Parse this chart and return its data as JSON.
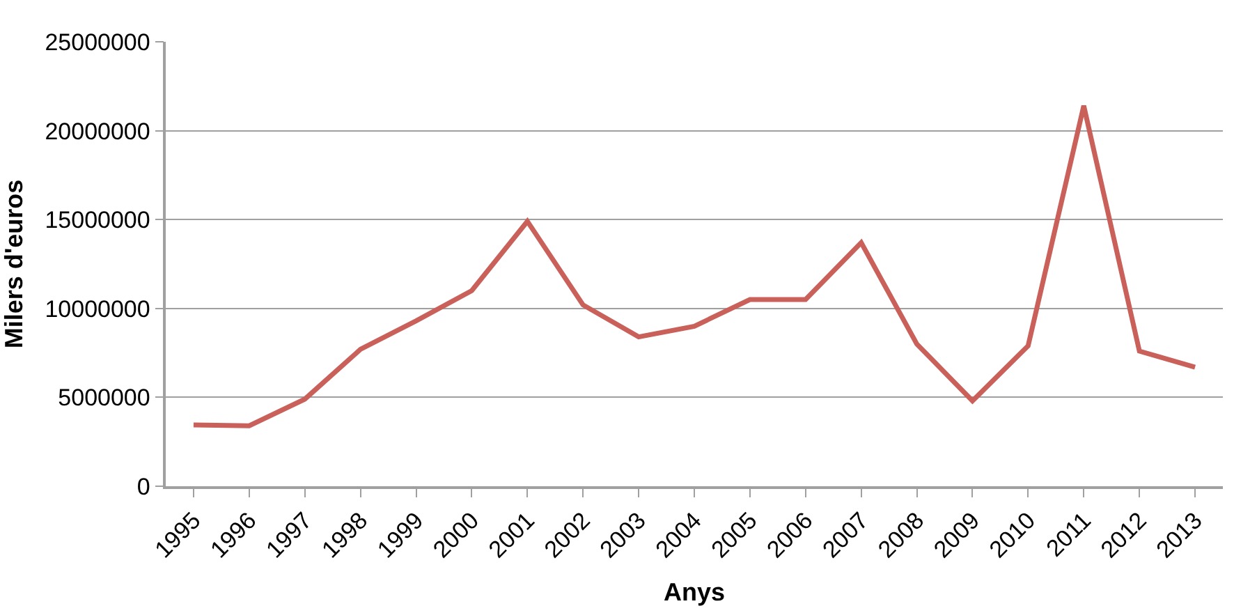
{
  "chart_data": {
    "type": "line",
    "xlabel": "Anys",
    "ylabel": "Milers d'euros",
    "categories": [
      "1995",
      "1996",
      "1997",
      "1998",
      "1999",
      "2000",
      "2001",
      "2002",
      "2003",
      "2004",
      "2005",
      "2006",
      "2007",
      "2008",
      "2009",
      "2010",
      "2011",
      "2012",
      "2013"
    ],
    "series": [
      {
        "color": "#c9605a",
        "values": [
          3450000,
          3400000,
          4900000,
          7700000,
          9300000,
          11000000,
          14900000,
          10200000,
          8400000,
          9000000,
          10500000,
          10500000,
          13700000,
          8000000,
          4800000,
          7900000,
          21400000,
          7600000,
          6700000
        ]
      }
    ],
    "ylim": [
      0,
      25000000
    ],
    "yticks": [
      0,
      5000000,
      10000000,
      15000000,
      20000000,
      25000000
    ],
    "grid": "y",
    "legend": false,
    "marker": "none",
    "line_style": "solid"
  }
}
